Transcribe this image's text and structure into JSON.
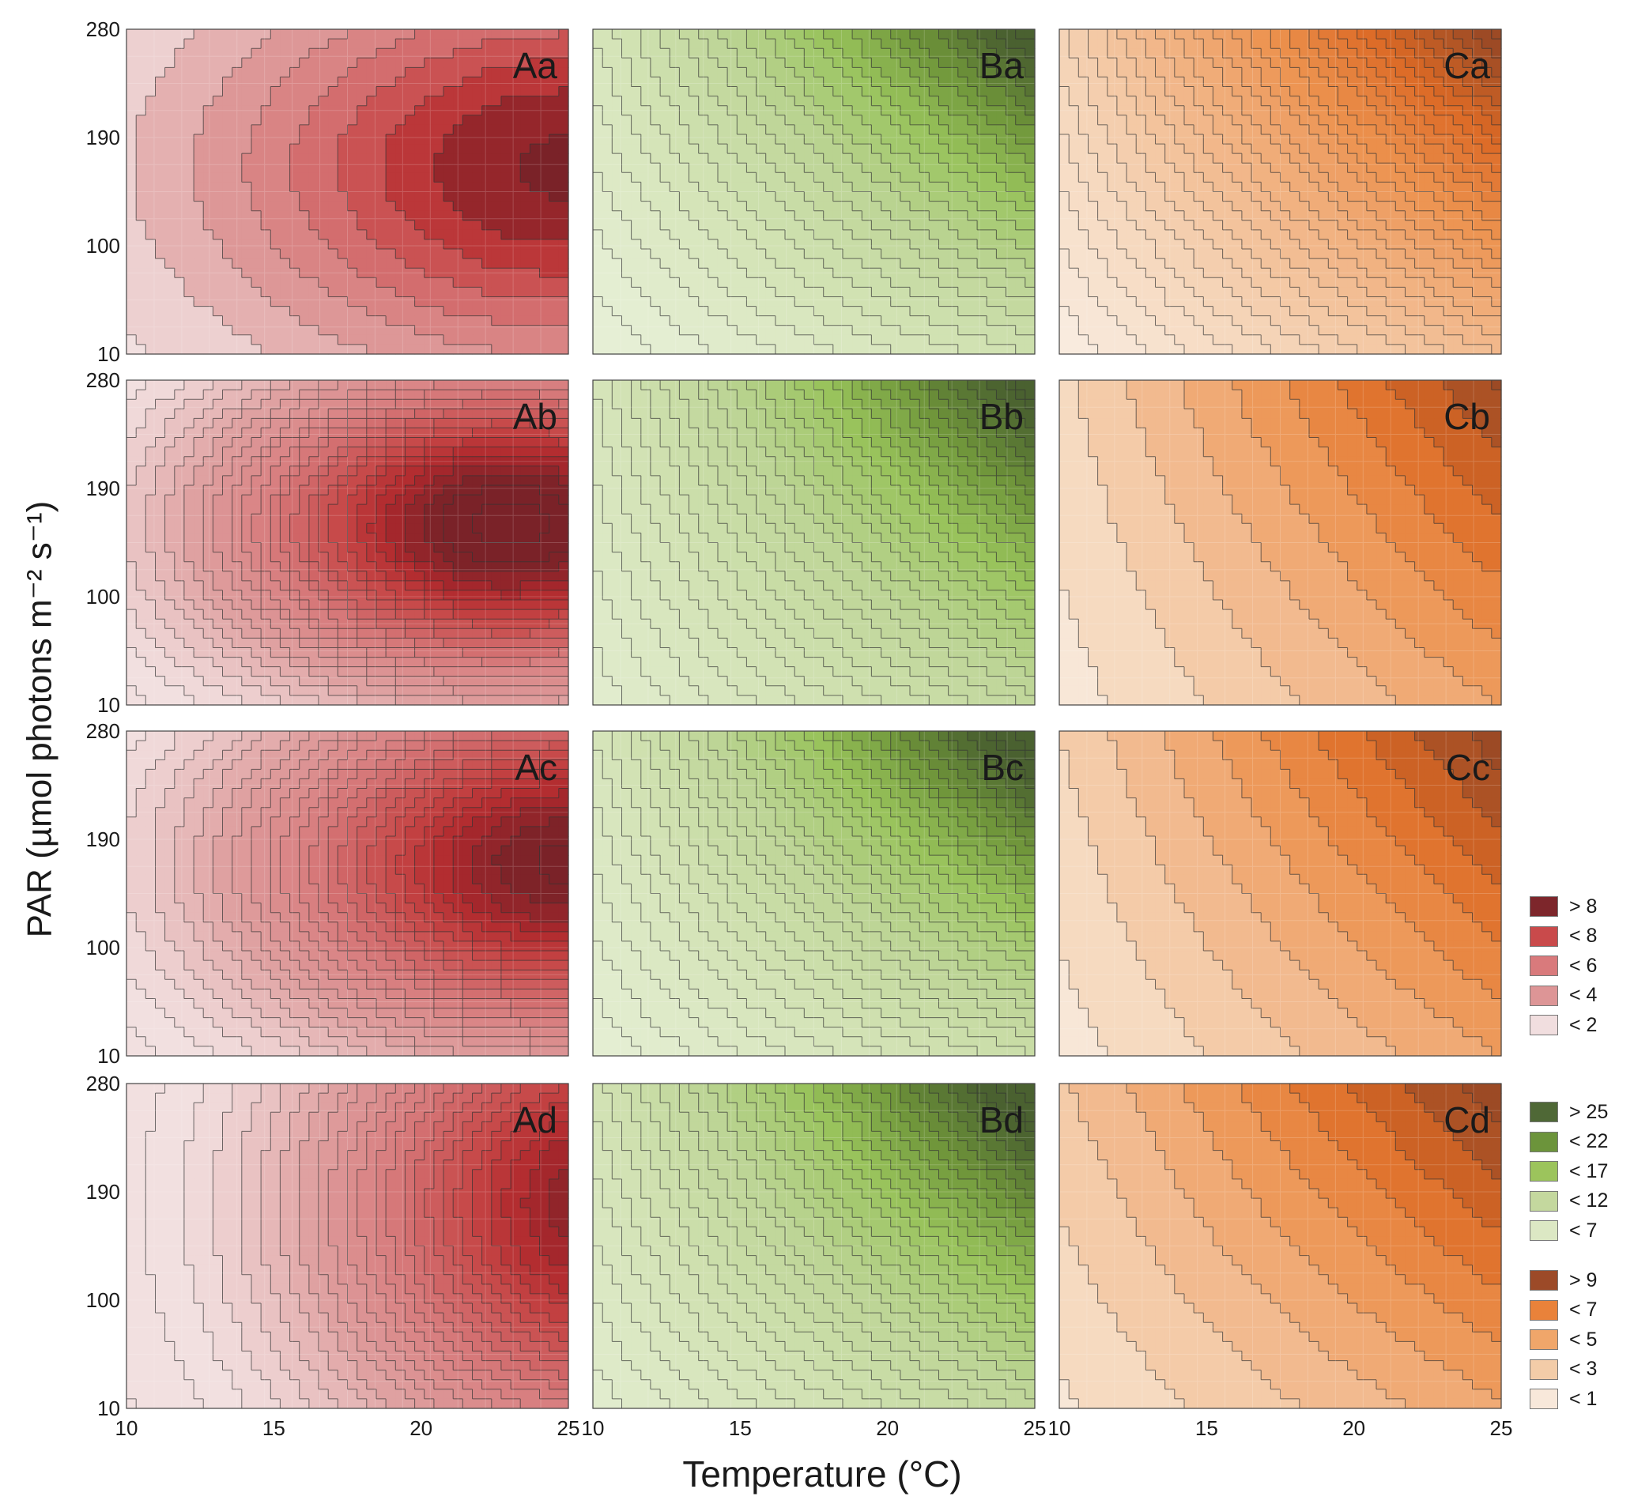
{
  "chart_data": {
    "type": "contour",
    "xlabel": "Temperature (°C)",
    "ylabel": "PAR (µmol photons m⁻² s⁻¹)",
    "xlim": [
      10,
      25
    ],
    "ylim": [
      10,
      280
    ],
    "xticks": [
      "10",
      "15",
      "20",
      "25"
    ],
    "yticks": [
      "10",
      "100",
      "190",
      "280"
    ],
    "grid": true,
    "panels": [
      {
        "label": "Aa",
        "scale": "red",
        "model": "peak",
        "peak": 9.2,
        "t0": 25,
        "p0": 165,
        "st": 12,
        "sp": 170,
        "step": 1
      },
      {
        "label": "Ab",
        "scale": "red",
        "model": "peak",
        "peak": 9.6,
        "t0": 23,
        "p0": 160,
        "st": 10,
        "sp": 140,
        "step": 0.35
      },
      {
        "label": "Ac",
        "scale": "red",
        "model": "peak",
        "peak": 9.2,
        "t0": 25,
        "p0": 170,
        "st": 11,
        "sp": 160,
        "step": 0.35
      },
      {
        "label": "Ad",
        "scale": "red",
        "model": "peak",
        "peak": 8.8,
        "t0": 26.5,
        "p0": 180,
        "st": 10,
        "sp": 220,
        "step": 0.35
      },
      {
        "label": "Ba",
        "scale": "green",
        "model": "ramp",
        "b0": 3,
        "kt": 7,
        "kp": 5,
        "ktp": 14,
        "step": 1
      },
      {
        "label": "Bb",
        "scale": "green",
        "model": "ramp",
        "b0": 5,
        "kt": 8,
        "kp": 3,
        "ktp": 13,
        "step": 0.8
      },
      {
        "label": "Bc",
        "scale": "green",
        "model": "ramp",
        "b0": 4,
        "kt": 7,
        "kp": 4,
        "ktp": 15,
        "step": 0.8
      },
      {
        "label": "Bd",
        "scale": "green",
        "model": "ramp",
        "b0": 5,
        "kt": 8,
        "kp": 4,
        "ktp": 13,
        "step": 0.8
      },
      {
        "label": "Ca",
        "scale": "orange",
        "model": "ramp",
        "b0": 0,
        "kt": 3.5,
        "kp": 2,
        "ktp": 5,
        "step": 0.35
      },
      {
        "label": "Cb",
        "scale": "orange",
        "model": "ramp",
        "b0": 0.5,
        "kt": 4.5,
        "kp": 1.2,
        "ktp": 4,
        "step": 1
      },
      {
        "label": "Cc",
        "scale": "orange",
        "model": "ramp",
        "b0": 0.5,
        "kt": 4.5,
        "kp": 1.5,
        "ktp": 4.2,
        "step": 1
      },
      {
        "label": "Cd",
        "scale": "orange",
        "model": "ramp",
        "b0": 0.8,
        "kt": 4,
        "kp": 2,
        "ktp": 4,
        "step": 1
      }
    ],
    "scales": {
      "red": [
        [
          1,
          "#f2e0e0"
        ],
        [
          3,
          "#dfa0a0"
        ],
        [
          5,
          "#d77a7b"
        ],
        [
          7,
          "#c64545"
        ],
        [
          8,
          "#b0292d"
        ],
        [
          9,
          "#7a2228"
        ]
      ],
      "green": [
        [
          4,
          "#e6efd5"
        ],
        [
          9,
          "#d3e3b5"
        ],
        [
          14,
          "#bdd596"
        ],
        [
          19,
          "#97c25a"
        ],
        [
          23,
          "#6e9439"
        ],
        [
          27,
          "#4a6130"
        ]
      ],
      "orange": [
        [
          0,
          "#f9ede2"
        ],
        [
          2,
          "#f5d3b5"
        ],
        [
          4,
          "#f1b282"
        ],
        [
          6,
          "#ec914d"
        ],
        [
          8,
          "#dc6a25"
        ],
        [
          10,
          "#9c4a25"
        ]
      ]
    },
    "legends": [
      [
        {
          "label": "> 8",
          "color": "#7d262b"
        },
        {
          "label": "< 8",
          "color": "#c94a4b"
        },
        {
          "label": "< 6",
          "color": "#d97a7c"
        },
        {
          "label": "< 4",
          "color": "#dd9596"
        },
        {
          "label": "< 2",
          "color": "#f1dedf"
        }
      ],
      [
        {
          "label": "> 25",
          "color": "#4f6836"
        },
        {
          "label": "< 22",
          "color": "#6c943b"
        },
        {
          "label": "< 17",
          "color": "#9cc45c"
        },
        {
          "label": "< 12",
          "color": "#c4d89e"
        },
        {
          "label": "< 7",
          "color": "#dce8c4"
        }
      ],
      [
        {
          "label": "> 9",
          "color": "#9c4a28"
        },
        {
          "label": "< 7",
          "color": "#e9823a"
        },
        {
          "label": "< 5",
          "color": "#f0a66a"
        },
        {
          "label": "< 3",
          "color": "#f3cca8"
        },
        {
          "label": "< 1",
          "color": "#f8e8da"
        }
      ]
    ]
  }
}
